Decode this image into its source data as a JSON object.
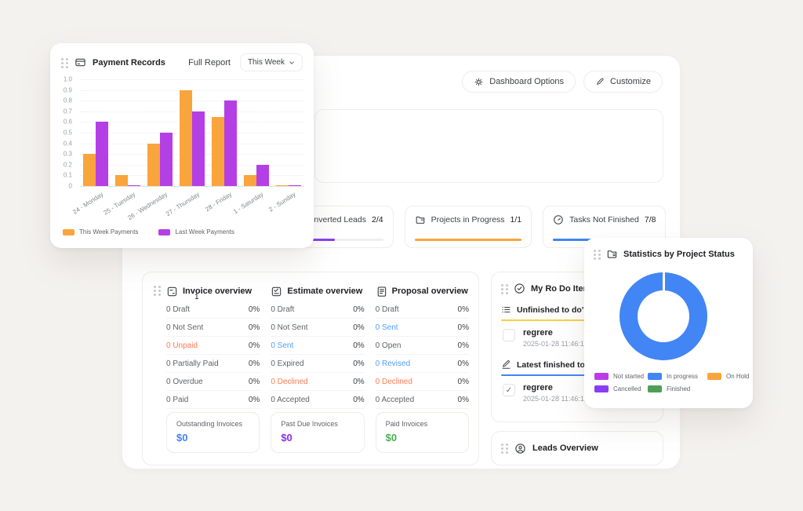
{
  "header_actions": {
    "dashboard_options": "Dashboard Options",
    "customize": "Customize"
  },
  "payment_card": {
    "title": "Payment Records",
    "full_report_label": "Full Report",
    "week_selector": {
      "value": "This Week"
    },
    "chart_data": {
      "type": "bar",
      "title": "Payment Records",
      "categories": [
        "24 - Monday",
        "25 - Tuesday",
        "26 - Wednesday",
        "27 - Thursday",
        "28 - Friday",
        "1 - Saturday",
        "2 - Sunday"
      ],
      "series": [
        {
          "name": "This Week Payments",
          "color": "#FAA43C",
          "values": [
            0.3,
            0.1,
            0.4,
            0.9,
            0.65,
            0.1,
            0.01
          ]
        },
        {
          "name": "Last Week Payments",
          "color": "#B43FE5",
          "values": [
            0.6,
            0.01,
            0.5,
            0.7,
            0.8,
            0.2,
            0.01
          ]
        }
      ],
      "ylim": [
        0,
        1
      ],
      "yticks": [
        "1.0",
        "0.9",
        "0.8",
        "0.7",
        "0.6",
        "0.5",
        "0.4",
        "0.3",
        "0.2",
        "0.1",
        "0"
      ],
      "grid": "horizontal-dotted",
      "legend_position": "bottom-left"
    }
  },
  "stat_cards": [
    {
      "label": "Converted Leads",
      "value": "2/4",
      "icon": "leads-icon",
      "color": "#8B3DF6",
      "track": "#f0edf5",
      "progress_percent": 50
    },
    {
      "label": "Projects in Progress",
      "value": "1/1",
      "icon": "projects-icon",
      "color": "#FAA43C",
      "track": "#fdeeda",
      "progress_percent": 100
    },
    {
      "label": "Tasks Not Finished",
      "value": "7/8",
      "icon": "tasks-icon",
      "color": "#4285F4",
      "track": "#bdd2fb",
      "progress_percent": 87.5
    }
  ],
  "overview_section": {
    "stray_badge": "1",
    "columns": [
      {
        "title": "Invoice overview",
        "icon": "invoice-icon",
        "rows": [
          {
            "label": "0 Draft",
            "percent": "0%",
            "color": "default"
          },
          {
            "label": "0 Not Sent",
            "percent": "0%",
            "color": "default"
          },
          {
            "label": "0 Unpaid",
            "percent": "0%",
            "color": "orange"
          },
          {
            "label": "0 Partially Paid",
            "percent": "0%",
            "color": "default"
          },
          {
            "label": "0 Overdue",
            "percent": "0%",
            "color": "default"
          },
          {
            "label": "0 Paid",
            "percent": "0%",
            "color": "default"
          }
        ]
      },
      {
        "title": "Estimate overview",
        "icon": "estimate-icon",
        "rows": [
          {
            "label": "0 Draft",
            "percent": "0%",
            "color": "default"
          },
          {
            "label": "0 Not Sent",
            "percent": "0%",
            "color": "default"
          },
          {
            "label": "0 Sent",
            "percent": "0%",
            "color": "blue"
          },
          {
            "label": "0 Expired",
            "percent": "0%",
            "color": "default"
          },
          {
            "label": "0 Declined",
            "percent": "0%",
            "color": "orange"
          },
          {
            "label": "0 Accepted",
            "percent": "0%",
            "color": "default"
          }
        ]
      },
      {
        "title": "Proposal overview",
        "icon": "proposal-icon",
        "rows": [
          {
            "label": "0 Draft",
            "percent": "0%",
            "color": "default"
          },
          {
            "label": "0 Sent",
            "percent": "0%",
            "color": "blue"
          },
          {
            "label": "0 Open",
            "percent": "0%",
            "color": "default"
          },
          {
            "label": "0 Revised",
            "percent": "0%",
            "color": "blue"
          },
          {
            "label": "0 Declined",
            "percent": "0%",
            "color": "orange"
          },
          {
            "label": "0 Accepted",
            "percent": "0%",
            "color": "default"
          }
        ]
      }
    ],
    "summaries": [
      {
        "label": "Outstanding Invoices",
        "value": "$0",
        "color": "#4285F4"
      },
      {
        "label": "Past Due Invoices",
        "value": "$0",
        "color": "#8B2FE8"
      },
      {
        "label": "Paid Invoices",
        "value": "$0",
        "color": "#4CAF50"
      }
    ]
  },
  "todo_card": {
    "title": "My Ro Do Items",
    "sections": [
      {
        "title": "Unfinished to do's",
        "icon": "list-icon",
        "accent": "#F7CE46",
        "items": [
          {
            "text": "regrere",
            "timestamp": "2025-01-28 11:46:19",
            "done": false
          }
        ]
      },
      {
        "title": "Latest finished to do's",
        "icon": "pencil-line-icon",
        "accent": "#4285F4",
        "items": [
          {
            "text": "regrere",
            "timestamp": "2025-01-28 11:46:19",
            "done": true
          }
        ]
      }
    ]
  },
  "leads_card": {
    "title": "Leads Overview"
  },
  "stats_card": {
    "title": "Statistics by Project Status",
    "chart_data": {
      "type": "donut",
      "labels": [
        "Not started",
        "In progress",
        "On Hold",
        "Cancelled",
        "Finished"
      ],
      "colors": [
        "#BB3BE8",
        "#4285F4",
        "#FAA43C",
        "#8B3DF6",
        "#4E9F55"
      ],
      "values": [
        0,
        1,
        0,
        0,
        0
      ],
      "legend_position": "bottom"
    }
  },
  "colors": {
    "page_background": "#f4f2ef",
    "accent_orange": "#FAA43C",
    "accent_purple": "#B43FE5",
    "accent_blue": "#4285F4",
    "text_orange": "#FD7A50",
    "text_blue": "#4D9EFF"
  }
}
